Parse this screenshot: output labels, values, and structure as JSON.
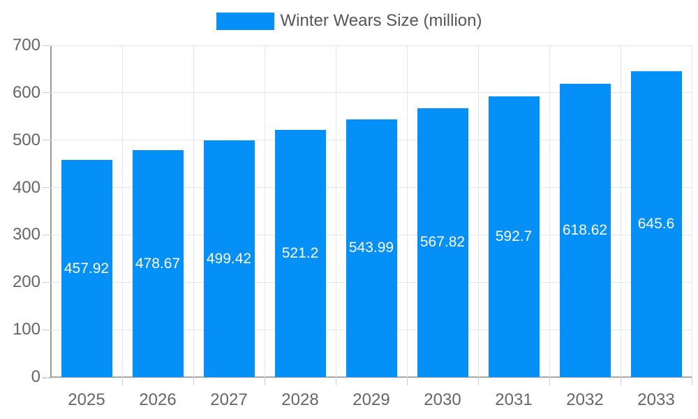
{
  "legend": {
    "label": "Winter Wears Size (million)"
  },
  "chart_data": {
    "type": "bar",
    "title": "Winter Wears Size (million)",
    "categories": [
      "2025",
      "2026",
      "2027",
      "2028",
      "2029",
      "2030",
      "2031",
      "2032",
      "2033"
    ],
    "series": [
      {
        "name": "Winter Wears Size (million)",
        "values": [
          457.92,
          478.67,
          499.42,
          521.2,
          543.99,
          567.82,
          592.7,
          618.62,
          645.6
        ]
      }
    ],
    "value_labels": [
      "457.92",
      "478.67",
      "499.42",
      "521.2",
      "543.99",
      "567.82",
      "592.7",
      "618.62",
      "645.6"
    ],
    "xlabel": "",
    "ylabel": "",
    "ylim": [
      0,
      700
    ],
    "yticks": [
      0,
      100,
      200,
      300,
      400,
      500,
      600,
      700
    ],
    "grid": true,
    "legend_position": "top",
    "colors": {
      "bar": "#0590f8",
      "bar_label": "#ffffff",
      "axis_text": "#666666",
      "legend_text": "#565656",
      "gridline": "#e6e6e6",
      "axis_line": "#999999",
      "tick": "#cccccc",
      "background": "#ffffff"
    }
  }
}
